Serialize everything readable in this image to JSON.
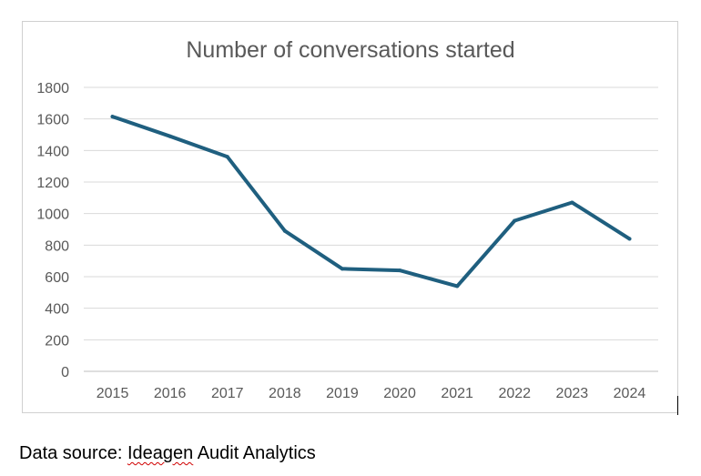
{
  "chart_data": {
    "type": "line",
    "title": "Number of conversations started",
    "xlabel": "",
    "ylabel": "",
    "categories": [
      "2015",
      "2016",
      "2017",
      "2018",
      "2019",
      "2020",
      "2021",
      "2022",
      "2023",
      "2024"
    ],
    "series": [
      {
        "values": [
          1615,
          1490,
          1360,
          890,
          650,
          640,
          540,
          955,
          1070,
          840
        ]
      }
    ],
    "ylim": [
      0,
      1800
    ],
    "yticks": [
      "0",
      "200",
      "400",
      "600",
      "800",
      "1000",
      "1200",
      "1400",
      "1600",
      "1800"
    ],
    "grid": true,
    "line_color": "#1f5f7f"
  },
  "footer": {
    "prefix": "Data source: ",
    "source_name": "Ideagen",
    "suffix": " Audit Analytics"
  }
}
